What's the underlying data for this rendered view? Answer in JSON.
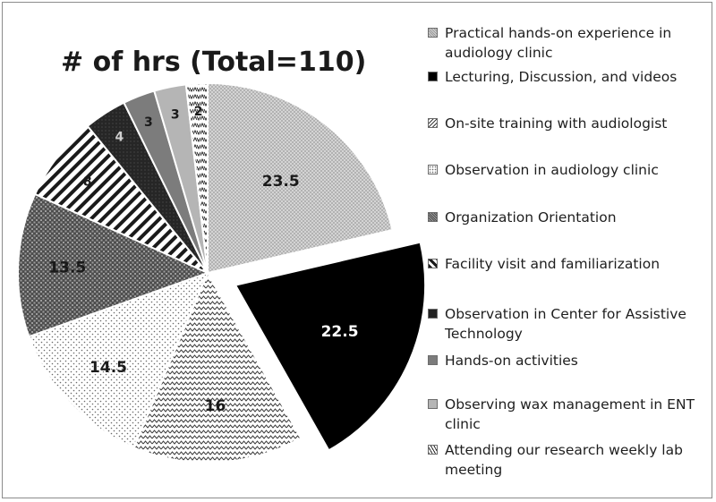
{
  "chart_data": {
    "type": "pie",
    "title": "# of hrs (Total=110)",
    "categories": [
      "Practical hands-on experience in audiology clinic",
      "Lecturing, Discussion, and videos",
      "On-site training with audiologist",
      "Observation in audiology clinic",
      "Organization Orientation",
      "Facility visit and familiarization",
      "Observation in Center for Assistive Technology",
      "Hands-on activities",
      "Observing wax management in ENT clinic",
      "Attending our research weekly lab meeting"
    ],
    "values": [
      23.5,
      22.5,
      16,
      14.5,
      13.5,
      8,
      4,
      3,
      3,
      2
    ],
    "data_labels": [
      "23.5",
      "22.5",
      "16",
      "14.5",
      "13.5",
      "8",
      "4",
      "3",
      "3",
      "2"
    ],
    "exploded_slice": "Lecturing, Discussion, and videos",
    "legend_position": "right",
    "colors": {
      "practical": "#c9c9c9",
      "lecturing": "#000000",
      "onsite": "#ffffff",
      "observation": "#ffffff",
      "orientation": "#6a6a6a",
      "facility": "#ffffff",
      "assistive": "#222222",
      "handson": "#7c7c7c",
      "wax": "#b5b5b5",
      "lab": "#ffffff"
    }
  }
}
